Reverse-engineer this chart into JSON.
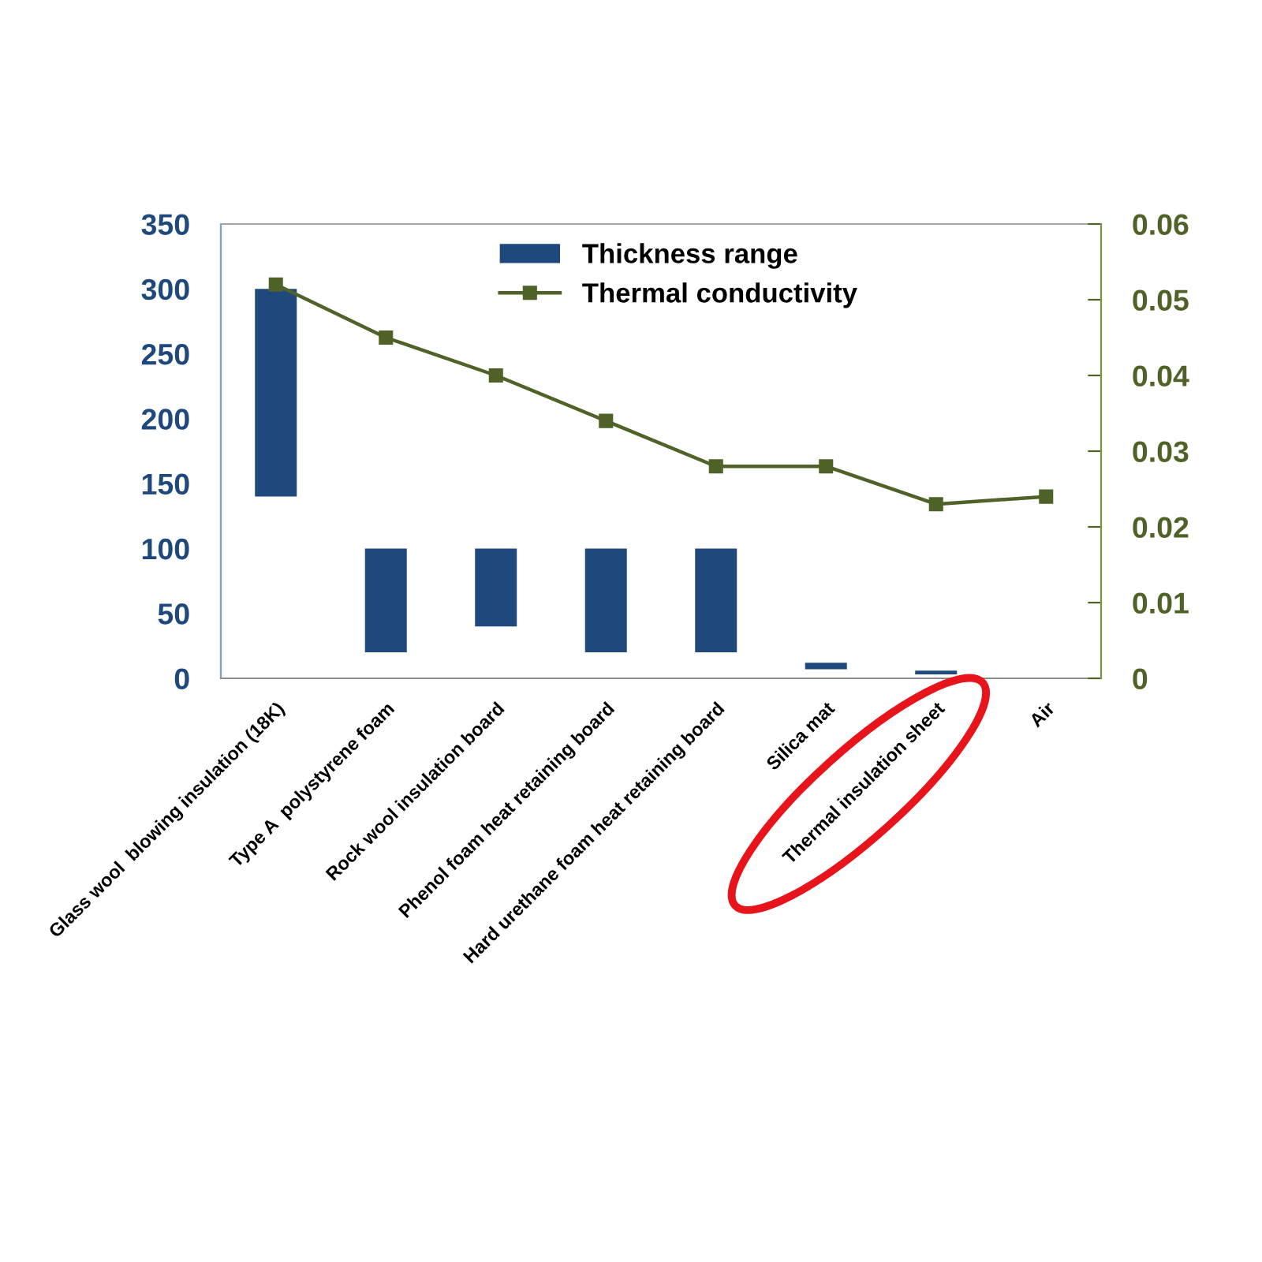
{
  "chart_data": {
    "type": "bar",
    "categories": [
      "Glass wool  blowing insulation (18K)",
      "Type A  polystyrene foam",
      "Rock wool insulation board",
      "Phenol foam heat retaining board",
      "Hard urethane foam heat retaining board",
      "Silica mat",
      "Thermal insulation sheet",
      "Air"
    ],
    "series": [
      {
        "name": "Thickness range",
        "color": "#1f497d",
        "values": [
          160,
          80,
          60,
          80,
          80,
          5,
          3,
          null
        ],
        "base": [
          140,
          20,
          40,
          20,
          20,
          7,
          3,
          null
        ]
      },
      {
        "name": "Thermal conductivity",
        "type": "line",
        "axis": "y2",
        "color": "#4f6228",
        "values": [
          0.052,
          0.045,
          0.04,
          0.034,
          0.028,
          0.028,
          0.023,
          0.024
        ]
      }
    ],
    "ylim": [
      0,
      350
    ],
    "yticks": [
      0,
      50,
      100,
      150,
      200,
      250,
      300,
      350
    ],
    "y2lim": [
      0,
      0.06
    ],
    "y2ticks": [
      0,
      0.01,
      0.02,
      0.03,
      0.04,
      0.05,
      0.06
    ],
    "marker": "square",
    "line_style": "solid",
    "legend": "top"
  }
}
